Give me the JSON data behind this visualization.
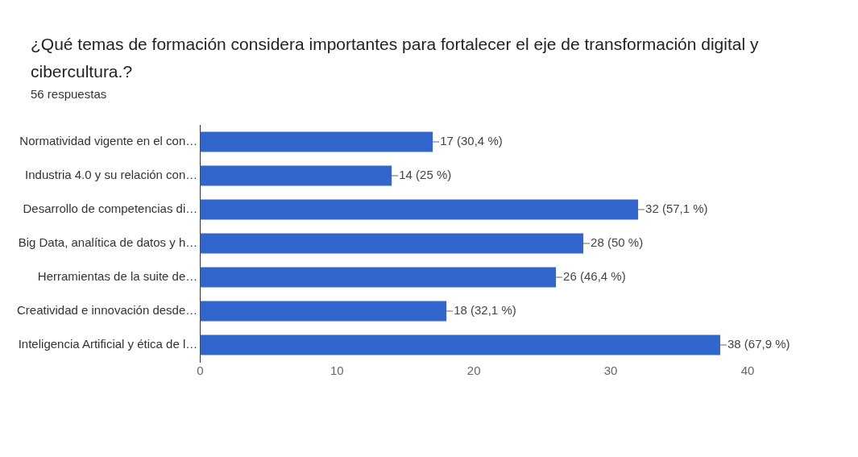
{
  "chart_data": {
    "type": "bar",
    "orientation": "horizontal",
    "title": "¿Qué temas de formación considera importantes para fortalecer el eje de transformación digital y cibercultura.?",
    "subtitle": "56 respuestas",
    "categories": [
      "Normatividad vigente en el con…",
      "Industria 4.0 y su relación con…",
      "Desarrollo de competencias di…",
      "Big Data, analítica de datos y h…",
      "Herramientas de la suite de…",
      "Creatividad e innovación desde…",
      "Inteligencia Artificial y ética de l…"
    ],
    "values": [
      17,
      14,
      32,
      28,
      26,
      18,
      38
    ],
    "value_labels": [
      "17 (30,4 %)",
      "14 (25 %)",
      "32 (57,1 %)",
      "28 (50 %)",
      "26 (46,4 %)",
      "18 (32,1 %)",
      "38 (67,9 %)"
    ],
    "color": "#3366cc",
    "xlim": [
      0,
      40
    ],
    "xticks": [
      0,
      10,
      20,
      30,
      40
    ],
    "grid": false,
    "legend": false
  }
}
